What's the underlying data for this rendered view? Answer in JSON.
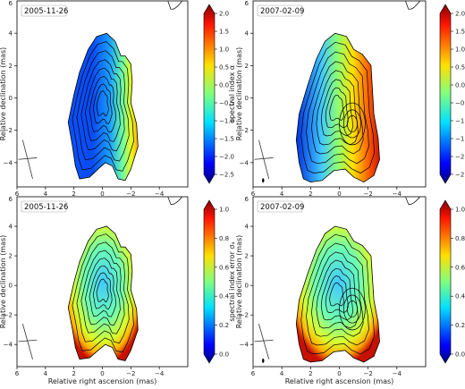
{
  "chart_data": [
    {
      "type": "heatmap",
      "date_label": "2005-11-26",
      "xlabel": "Relative right ascension (mas)",
      "ylabel": "Relative declination (mas)",
      "xlim": [
        6,
        -6
      ],
      "ylim": [
        -5.5,
        6
      ],
      "x_ticks": [
        6,
        4,
        2,
        0,
        -2,
        -4
      ],
      "y_ticks": [
        -4,
        -2,
        0,
        2,
        4
      ],
      "colorbar": {
        "label": "spectral index α",
        "range": [
          -2.5,
          2.0
        ],
        "ticks": [
          "2.0",
          "1.5",
          "1.0",
          "0.5",
          "0.0",
          "−0.5",
          "−1.0",
          "−1.5",
          "−2.0",
          "−2.5"
        ],
        "colormap": "jet"
      }
    },
    {
      "type": "heatmap",
      "date_label": "2007-02-09",
      "xlabel": "Relative right ascension (mas)",
      "ylabel": "Relative declination (mas)",
      "xlim": [
        6,
        -6
      ],
      "ylim": [
        -5.5,
        6
      ],
      "x_ticks": [
        6,
        4,
        2,
        0,
        -2,
        -4
      ],
      "y_ticks": [
        -4,
        -2,
        0,
        2,
        4
      ],
      "colorbar": {
        "label": "spectral index α",
        "range": [
          -2.5,
          2.0
        ],
        "ticks": [
          "2.0",
          "1.5",
          "1.0",
          "0.5",
          "0.0",
          "−0.5",
          "−1.0",
          "−1.5",
          "−2.0",
          "−2.5"
        ],
        "colormap": "jet"
      }
    },
    {
      "type": "heatmap",
      "date_label": "2005-11-26",
      "xlabel": "Relative right ascension (mas)",
      "ylabel": "Relative declination (mas)",
      "xlim": [
        6,
        -6
      ],
      "ylim": [
        -5.5,
        6
      ],
      "x_ticks": [
        6,
        4,
        2,
        0,
        -2,
        -4
      ],
      "y_ticks": [
        -4,
        -2,
        0,
        2,
        4
      ],
      "colorbar": {
        "label": "spectral index error σₐ",
        "range": [
          0.0,
          1.0
        ],
        "ticks": [
          "1.0",
          "0.8",
          "0.6",
          "0.4",
          "0.2",
          "0.0"
        ],
        "colormap": "jet"
      }
    },
    {
      "type": "heatmap",
      "date_label": "2007-02-09",
      "xlabel": "Relative right ascension (mas)",
      "ylabel": "Relative declination (mas)",
      "xlim": [
        6,
        -6
      ],
      "ylim": [
        -5.5,
        6
      ],
      "x_ticks": [
        6,
        4,
        2,
        0,
        -2,
        -4
      ],
      "y_ticks": [
        -4,
        -2,
        0,
        2,
        4
      ],
      "colorbar": {
        "label": "spectral index error σₐ",
        "range": [
          0.0,
          1.0
        ],
        "ticks": [
          "1.0",
          "0.8",
          "0.6",
          "0.4",
          "0.2",
          "0.0"
        ],
        "colormap": "jet"
      }
    }
  ]
}
